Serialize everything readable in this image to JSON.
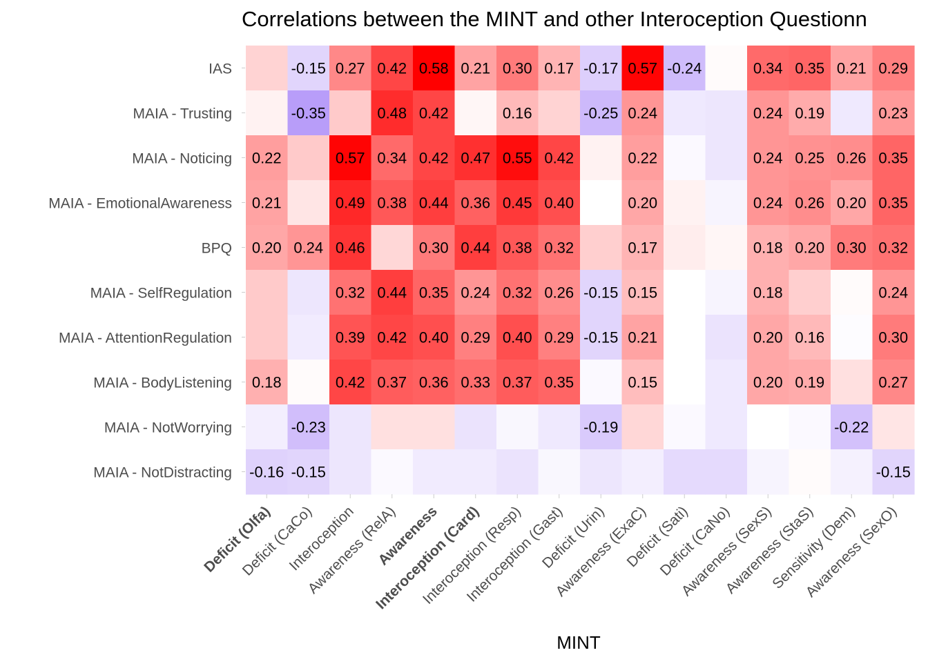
{
  "chart_data": {
    "type": "heatmap",
    "title": "Correlations between the MINT and other Interoception Questionn",
    "xlabel": "MINT",
    "ylabel": "",
    "x_categories": [
      "Deficit (Olfa)",
      "Deficit (CaCo)",
      "Interoception",
      "Awareness (RelA)",
      "Awareness",
      "Interoception (Card)",
      "Interoception (Resp)",
      "Interoception (Gast)",
      "Deficit (Urin)",
      "Awareness (ExaC)",
      "Deficit (Sati)",
      "Deficit (CaNo)",
      "Awareness (SexS)",
      "Awareness (StaS)",
      "Sensitivity (Dem)",
      "Awareness (SexO)"
    ],
    "x_bold": [
      true,
      false,
      false,
      false,
      true,
      true,
      false,
      false,
      false,
      false,
      false,
      false,
      false,
      false,
      false,
      false
    ],
    "y_categories": [
      "IAS",
      "MAIA - Trusting",
      "MAIA - Noticing",
      "MAIA - EmotionalAwareness",
      "BPQ",
      "MAIA - SelfRegulation",
      "MAIA - AttentionRegulation",
      "MAIA - BodyListening",
      "MAIA - NotWorrying",
      "MAIA - NotDistracting"
    ],
    "values": [
      [
        0.1,
        -0.15,
        0.27,
        0.42,
        0.58,
        0.21,
        0.3,
        0.17,
        -0.17,
        0.57,
        -0.24,
        0.01,
        0.34,
        0.35,
        0.21,
        0.29
      ],
      [
        0.03,
        -0.35,
        0.12,
        0.48,
        0.42,
        0.02,
        0.16,
        0.1,
        -0.25,
        0.24,
        -0.08,
        -0.09,
        0.24,
        0.19,
        -0.08,
        0.23
      ],
      [
        0.22,
        0.12,
        0.57,
        0.34,
        0.42,
        0.47,
        0.55,
        0.42,
        0.03,
        0.22,
        -0.02,
        -0.09,
        0.24,
        0.25,
        0.26,
        0.35
      ],
      [
        0.21,
        0.06,
        0.49,
        0.38,
        0.44,
        0.36,
        0.45,
        0.4,
        0.0,
        0.2,
        0.03,
        -0.04,
        0.24,
        0.26,
        0.2,
        0.35
      ],
      [
        0.2,
        0.24,
        0.46,
        0.09,
        0.3,
        0.44,
        0.38,
        0.32,
        0.11,
        0.17,
        0.04,
        0.02,
        0.18,
        0.2,
        0.3,
        0.32
      ],
      [
        0.12,
        -0.09,
        0.32,
        0.44,
        0.35,
        0.24,
        0.32,
        0.26,
        -0.15,
        0.15,
        0.0,
        -0.04,
        0.18,
        0.11,
        0.01,
        0.24
      ],
      [
        0.12,
        -0.07,
        0.39,
        0.42,
        0.4,
        0.29,
        0.4,
        0.29,
        -0.15,
        0.21,
        0.0,
        -0.1,
        0.2,
        0.16,
        -0.01,
        0.3
      ],
      [
        0.18,
        0.01,
        0.42,
        0.37,
        0.36,
        0.33,
        0.37,
        0.35,
        -0.02,
        0.15,
        0.0,
        -0.08,
        0.2,
        0.19,
        0.07,
        0.27
      ],
      [
        -0.06,
        -0.23,
        -0.09,
        0.07,
        0.07,
        -0.1,
        -0.03,
        -0.08,
        -0.19,
        0.09,
        -0.02,
        -0.08,
        0.0,
        -0.02,
        -0.22,
        0.06
      ],
      [
        -0.16,
        -0.15,
        -0.09,
        -0.02,
        -0.07,
        -0.07,
        -0.1,
        -0.03,
        -0.09,
        -0.06,
        -0.13,
        -0.13,
        -0.04,
        0.01,
        -0.05,
        -0.15
      ]
    ],
    "labels": [
      [
        "",
        "-0.15",
        "0.27",
        "0.42",
        "0.58",
        "0.21",
        "0.30",
        "0.17",
        "-0.17",
        "0.57",
        "-0.24",
        "",
        "0.34",
        "0.35",
        "0.21",
        "0.29"
      ],
      [
        "",
        "-0.35",
        "",
        "0.48",
        "0.42",
        "",
        "0.16",
        "",
        "-0.25",
        "0.24",
        "",
        "",
        "0.24",
        "0.19",
        "",
        "0.23"
      ],
      [
        "0.22",
        "",
        "0.57",
        "0.34",
        "0.42",
        "0.47",
        "0.55",
        "0.42",
        "",
        "0.22",
        "",
        "",
        "0.24",
        "0.25",
        "0.26",
        "0.35"
      ],
      [
        "0.21",
        "",
        "0.49",
        "0.38",
        "0.44",
        "0.36",
        "0.45",
        "0.40",
        "",
        "0.20",
        "",
        "",
        "0.24",
        "0.26",
        "0.20",
        "0.35"
      ],
      [
        "0.20",
        "0.24",
        "0.46",
        "",
        "0.30",
        "0.44",
        "0.38",
        "0.32",
        "",
        "0.17",
        "",
        "",
        "0.18",
        "0.20",
        "0.30",
        "0.32"
      ],
      [
        "",
        "",
        "0.32",
        "0.44",
        "0.35",
        "0.24",
        "0.32",
        "0.26",
        "-0.15",
        "0.15",
        "",
        "",
        "0.18",
        "",
        "",
        "0.24"
      ],
      [
        "",
        "",
        "0.39",
        "0.42",
        "0.40",
        "0.29",
        "0.40",
        "0.29",
        "-0.15",
        "0.21",
        "",
        "",
        "0.20",
        "0.16",
        "",
        "0.30"
      ],
      [
        "0.18",
        "",
        "0.42",
        "0.37",
        "0.36",
        "0.33",
        "0.37",
        "0.35",
        "",
        "0.15",
        "",
        "",
        "0.20",
        "0.19",
        "",
        "0.27"
      ],
      [
        "",
        "-0.23",
        "",
        "",
        "",
        "",
        "",
        "",
        "-0.19",
        "",
        "",
        "",
        "",
        "",
        "-0.22",
        ""
      ],
      [
        "-0.16",
        "-0.15",
        "",
        "",
        "",
        "",
        "",
        "",
        "",
        "",
        "",
        "",
        "",
        "",
        "",
        "-0.15"
      ]
    ],
    "color_scale": {
      "low": "#8a5cf5",
      "mid": "#ffffff",
      "high": "#ff0000",
      "limit": 0.58
    },
    "grid": false,
    "legend": "none"
  }
}
